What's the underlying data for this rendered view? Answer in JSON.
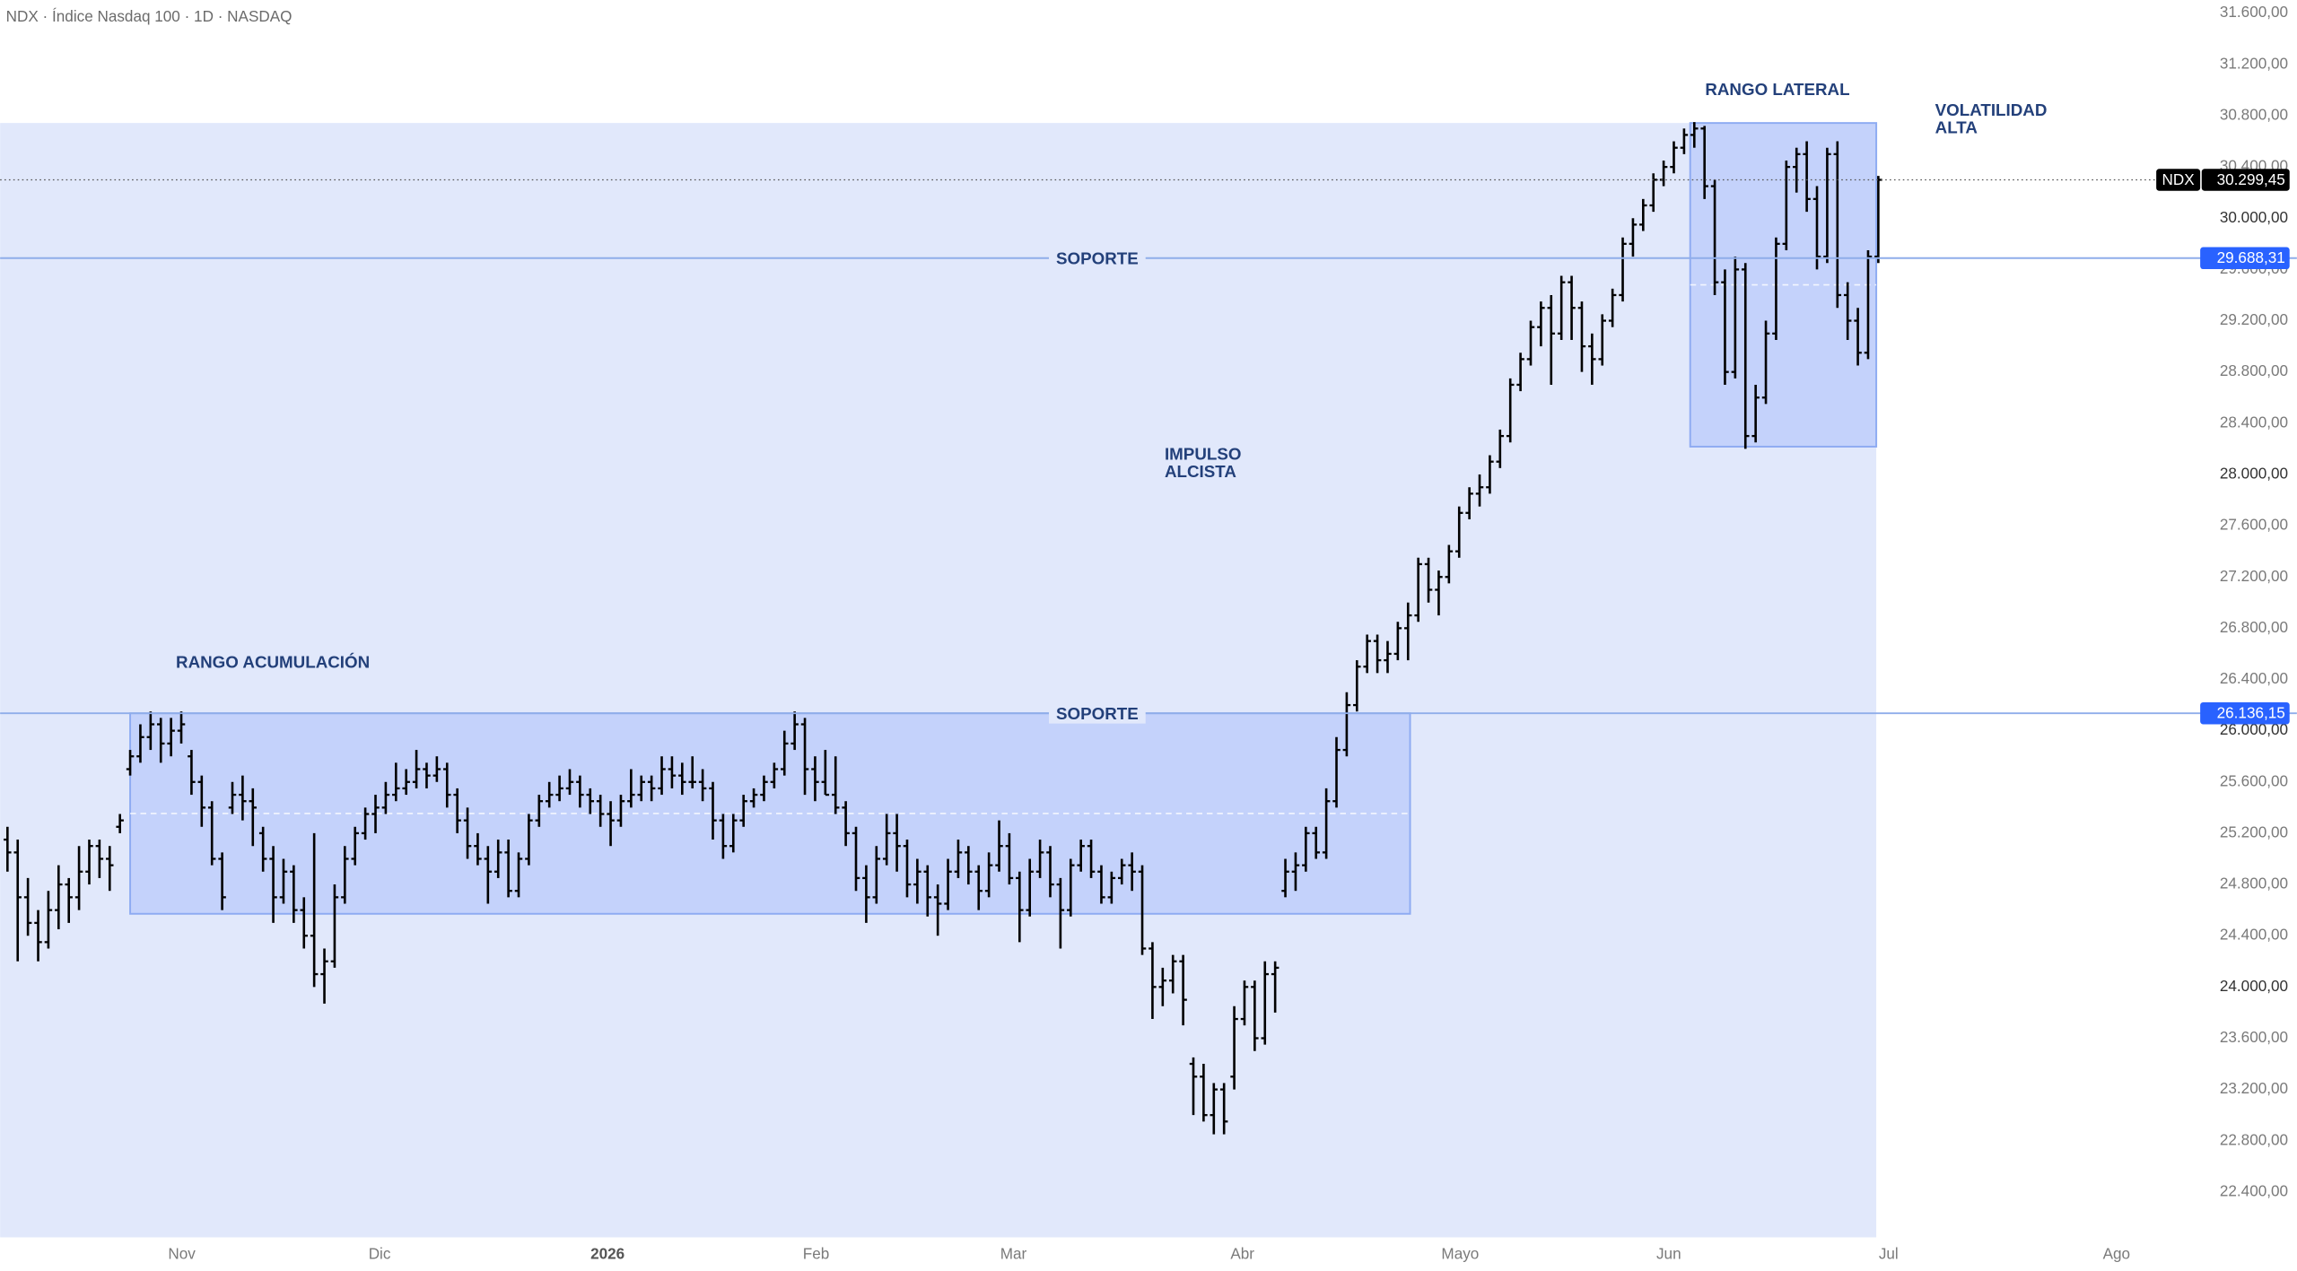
{
  "chart_data": {
    "type": "ohlc",
    "title": "NDX · Índice Nasdaq 100 · 1D · NASDAQ",
    "symbol": "NDX",
    "color": "#000000",
    "last_label": "30.299,45",
    "xlim": [
      -0.72,
      214.2
    ],
    "ylim": [
      22046,
      31703
    ],
    "xticks": [
      {
        "value": 17.05,
        "label": "Nov"
      },
      {
        "value": 36.4,
        "label": "Dic"
      },
      {
        "value": 58.7,
        "label": "2026"
      },
      {
        "value": 79.1,
        "label": "Feb"
      },
      {
        "value": 98.4,
        "label": "Mar"
      },
      {
        "value": 120.8,
        "label": "Abr"
      },
      {
        "value": 142.1,
        "label": "Mayo"
      },
      {
        "value": 162.5,
        "label": "Jun"
      },
      {
        "value": 184.0,
        "label": "Jul"
      },
      {
        "value": 206.3,
        "label": "Ago"
      }
    ],
    "yticks": [
      {
        "value": 31600,
        "label": "31.600,00"
      },
      {
        "value": 31200,
        "label": "31.200,00"
      },
      {
        "value": 30800,
        "label": "30.800,00"
      },
      {
        "value": 30400,
        "label": "30.400,00"
      },
      {
        "value": 30000,
        "label": "30.000,00"
      },
      {
        "value": 29600,
        "label": "29.600,00"
      },
      {
        "value": 29200,
        "label": "29.200,00"
      },
      {
        "value": 28800,
        "label": "28.800,00"
      },
      {
        "value": 28400,
        "label": "28.400,00"
      },
      {
        "value": 28000,
        "label": "28.000,00"
      },
      {
        "value": 27600,
        "label": "27.600,00"
      },
      {
        "value": 27200,
        "label": "27.200,00"
      },
      {
        "value": 26800,
        "label": "26.800,00"
      },
      {
        "value": 26400,
        "label": "26.400,00"
      },
      {
        "value": 26000,
        "label": "26.000,00"
      },
      {
        "value": 25600,
        "label": "25.600,00"
      },
      {
        "value": 25200,
        "label": "25.200,00"
      },
      {
        "value": 24800,
        "label": "24.800,00"
      },
      {
        "value": 24400,
        "label": "24.400,00"
      },
      {
        "value": 24000,
        "label": "24.000,00"
      },
      {
        "value": 23600,
        "label": "23.600,00"
      },
      {
        "value": 23200,
        "label": "23.200,00"
      },
      {
        "value": 22800,
        "label": "22.800,00"
      },
      {
        "value": 22400,
        "label": "22.400,00"
      }
    ],
    "levels": [
      {
        "name": "SOPORTE",
        "value": 29688.31,
        "label": "29.688,31"
      },
      {
        "name": "SOPORTE",
        "value": 26136.15,
        "label": "26.136,15"
      }
    ],
    "zones": [
      {
        "x": [
          12.0,
          137.2
        ],
        "y": [
          24571,
          26136.15
        ]
      },
      {
        "x": [
          164.6,
          182.8
        ],
        "y": [
          28217,
          30743
        ]
      }
    ],
    "annotations": [
      {
        "lines": [
          "RANGO ACUMULACIÓN"
        ]
      },
      {
        "lines": [
          "RANGO LATERAL"
        ]
      },
      {
        "lines": [
          "IMPULSO",
          "ALCISTA"
        ]
      },
      {
        "lines": [
          "VOLATILIDAD",
          "ALTA"
        ]
      }
    ],
    "ohlc": [
      [
        25150,
        25250,
        24900,
        25050
      ],
      [
        25050,
        25150,
        24200,
        24700
      ],
      [
        24700,
        24850,
        24400,
        24500
      ],
      [
        24500,
        24600,
        24200,
        24350
      ],
      [
        24350,
        24750,
        24300,
        24600
      ],
      [
        24600,
        24950,
        24450,
        24800
      ],
      [
        24800,
        24850,
        24500,
        24700
      ],
      [
        24700,
        25100,
        24600,
        24900
      ],
      [
        24900,
        25150,
        24800,
        25100
      ],
      [
        25100,
        25150,
        24850,
        25000
      ],
      [
        25000,
        25100,
        24750,
        24950
      ],
      [
        25250,
        25350,
        25200,
        25300
      ],
      [
        25700,
        25850,
        25650,
        25800
      ],
      [
        25800,
        26050,
        25750,
        25950
      ],
      [
        25950,
        26150,
        25850,
        26050
      ],
      [
        26050,
        26100,
        25750,
        25900
      ],
      [
        25900,
        26100,
        25800,
        26000
      ],
      [
        26000,
        26150,
        25900,
        26050
      ],
      [
        25800,
        25850,
        25500,
        25600
      ],
      [
        25600,
        25650,
        25250,
        25400
      ],
      [
        25400,
        25450,
        24950,
        25000
      ],
      [
        25000,
        25050,
        24600,
        24700
      ],
      [
        25400,
        25600,
        25350,
        25500
      ],
      [
        25500,
        25650,
        25300,
        25450
      ],
      [
        25450,
        25550,
        25100,
        25400
      ],
      [
        25200,
        25250,
        24900,
        25000
      ],
      [
        25000,
        25100,
        24500,
        24700
      ],
      [
        24700,
        25000,
        24650,
        24900
      ],
      [
        24900,
        24950,
        24500,
        24600
      ],
      [
        24600,
        24700,
        24300,
        24400
      ],
      [
        24400,
        25200,
        24000,
        24100
      ],
      [
        24100,
        24300,
        23870,
        24200
      ],
      [
        24200,
        24800,
        24150,
        24700
      ],
      [
        24700,
        25100,
        24650,
        25000
      ],
      [
        25000,
        25250,
        24950,
        25200
      ],
      [
        25200,
        25400,
        25150,
        25350
      ],
      [
        25350,
        25500,
        25200,
        25400
      ],
      [
        25400,
        25600,
        25350,
        25500
      ],
      [
        25500,
        25750,
        25450,
        25550
      ],
      [
        25550,
        25700,
        25500,
        25600
      ],
      [
        25600,
        25850,
        25550,
        25700
      ],
      [
        25700,
        25750,
        25550,
        25650
      ],
      [
        25650,
        25800,
        25600,
        25700
      ],
      [
        25700,
        25750,
        25400,
        25500
      ],
      [
        25500,
        25550,
        25200,
        25300
      ],
      [
        25300,
        25400,
        25000,
        25100
      ],
      [
        25100,
        25200,
        24950,
        25000
      ],
      [
        25000,
        25100,
        24650,
        24900
      ],
      [
        24900,
        25150,
        24850,
        25050
      ],
      [
        25050,
        25150,
        24700,
        24750
      ],
      [
        24750,
        25050,
        24700,
        25000
      ],
      [
        25000,
        25350,
        24950,
        25300
      ],
      [
        25300,
        25500,
        25250,
        25450
      ],
      [
        25450,
        25600,
        25400,
        25500
      ],
      [
        25500,
        25650,
        25450,
        25550
      ],
      [
        25550,
        25700,
        25500,
        25600
      ],
      [
        25600,
        25650,
        25400,
        25500
      ],
      [
        25500,
        25550,
        25350,
        25450
      ],
      [
        25450,
        25500,
        25250,
        25350
      ],
      [
        25350,
        25450,
        25100,
        25300
      ],
      [
        25300,
        25500,
        25250,
        25450
      ],
      [
        25450,
        25700,
        25400,
        25500
      ],
      [
        25500,
        25650,
        25450,
        25600
      ],
      [
        25600,
        25650,
        25450,
        25550
      ],
      [
        25550,
        25800,
        25500,
        25700
      ],
      [
        25700,
        25800,
        25550,
        25650
      ],
      [
        25650,
        25750,
        25500,
        25600
      ],
      [
        25600,
        25800,
        25550,
        25600
      ],
      [
        25600,
        25700,
        25450,
        25550
      ],
      [
        25550,
        25600,
        25150,
        25300
      ],
      [
        25300,
        25350,
        25000,
        25100
      ],
      [
        25100,
        25350,
        25050,
        25300
      ],
      [
        25300,
        25500,
        25250,
        25450
      ],
      [
        25450,
        25550,
        25400,
        25500
      ],
      [
        25500,
        25650,
        25450,
        25600
      ],
      [
        25600,
        25750,
        25550,
        25700
      ],
      [
        25700,
        26000,
        25650,
        25900
      ],
      [
        25900,
        26150,
        25850,
        26050
      ],
      [
        26050,
        26100,
        25500,
        25700
      ],
      [
        25700,
        25800,
        25450,
        25600
      ],
      [
        25600,
        25850,
        25500,
        25500
      ],
      [
        25500,
        25800,
        25350,
        25400
      ],
      [
        25400,
        25450,
        25100,
        25200
      ],
      [
        25200,
        25250,
        24750,
        24850
      ],
      [
        24850,
        24950,
        24500,
        24700
      ],
      [
        24700,
        25100,
        24650,
        25000
      ],
      [
        25000,
        25350,
        24950,
        25200
      ],
      [
        25200,
        25350,
        24900,
        25100
      ],
      [
        25100,
        25150,
        24700,
        24800
      ],
      [
        24800,
        25000,
        24650,
        24900
      ],
      [
        24900,
        24950,
        24550,
        24700
      ],
      [
        24700,
        24800,
        24400,
        24650
      ],
      [
        24650,
        25000,
        24600,
        24900
      ],
      [
        24900,
        25150,
        24850,
        25050
      ],
      [
        25050,
        25100,
        24800,
        24900
      ],
      [
        24900,
        24950,
        24600,
        24750
      ],
      [
        24750,
        25050,
        24700,
        24950
      ],
      [
        24950,
        25300,
        24900,
        25100
      ],
      [
        25100,
        25200,
        24800,
        24850
      ],
      [
        24850,
        24900,
        24350,
        24600
      ],
      [
        24600,
        25000,
        24550,
        24900
      ],
      [
        24900,
        25150,
        24850,
        25050
      ],
      [
        25050,
        25100,
        24700,
        24800
      ],
      [
        24800,
        24850,
        24300,
        24600
      ],
      [
        24600,
        25000,
        24550,
        24950
      ],
      [
        24950,
        25150,
        24900,
        25100
      ],
      [
        25100,
        25150,
        24850,
        24900
      ],
      [
        24900,
        24950,
        24650,
        24700
      ],
      [
        24700,
        24900,
        24650,
        24850
      ],
      [
        24850,
        25000,
        24800,
        24950
      ],
      [
        24950,
        25050,
        24750,
        24900
      ],
      [
        24900,
        24950,
        24250,
        24300
      ],
      [
        24300,
        24350,
        23750,
        24000
      ],
      [
        24000,
        24150,
        23850,
        24050
      ],
      [
        24050,
        24250,
        23950,
        24200
      ],
      [
        24200,
        24250,
        23700,
        23900
      ],
      [
        23400,
        23450,
        23000,
        23300
      ],
      [
        23300,
        23400,
        22950,
        23000
      ],
      [
        23000,
        23250,
        22850,
        23200
      ],
      [
        23200,
        23250,
        22850,
        22950
      ],
      [
        23300,
        23850,
        23200,
        23750
      ],
      [
        23750,
        24050,
        23700,
        24000
      ],
      [
        24000,
        24050,
        23500,
        23600
      ],
      [
        23600,
        24200,
        23550,
        24100
      ],
      [
        24100,
        24200,
        23800,
        24150
      ],
      [
        24750,
        25000,
        24700,
        24900
      ],
      [
        24900,
        25050,
        24750,
        24950
      ],
      [
        24950,
        25250,
        24900,
        25200
      ],
      [
        25200,
        25250,
        25000,
        25050
      ],
      [
        25050,
        25550,
        25000,
        25450
      ],
      [
        25450,
        25950,
        25400,
        25850
      ],
      [
        25850,
        26300,
        25800,
        26200
      ],
      [
        26200,
        26550,
        26150,
        26500
      ],
      [
        26500,
        26750,
        26450,
        26700
      ],
      [
        26700,
        26750,
        26450,
        26550
      ],
      [
        26550,
        26700,
        26450,
        26600
      ],
      [
        26600,
        26850,
        26550,
        26800
      ],
      [
        26800,
        27000,
        26550,
        26900
      ],
      [
        26900,
        27350,
        26850,
        27300
      ],
      [
        27300,
        27350,
        27000,
        27100
      ],
      [
        27100,
        27250,
        26900,
        27200
      ],
      [
        27200,
        27450,
        27150,
        27400
      ],
      [
        27400,
        27750,
        27350,
        27700
      ],
      [
        27700,
        27900,
        27650,
        27850
      ],
      [
        27850,
        28000,
        27750,
        27900
      ],
      [
        27900,
        28150,
        27850,
        28100
      ],
      [
        28100,
        28350,
        28050,
        28300
      ],
      [
        28300,
        28750,
        28250,
        28700
      ],
      [
        28700,
        28950,
        28650,
        28900
      ],
      [
        28900,
        29200,
        28850,
        29150
      ],
      [
        29150,
        29350,
        29000,
        29300
      ],
      [
        29300,
        29400,
        28700,
        29100
      ],
      [
        29100,
        29550,
        29050,
        29500
      ],
      [
        29500,
        29550,
        29050,
        29300
      ],
      [
        29300,
        29350,
        28800,
        29000
      ],
      [
        29000,
        29100,
        28700,
        28900
      ],
      [
        28900,
        29250,
        28850,
        29200
      ],
      [
        29200,
        29450,
        29150,
        29400
      ],
      [
        29400,
        29850,
        29350,
        29800
      ],
      [
        29800,
        30000,
        29700,
        29950
      ],
      [
        29950,
        30150,
        29900,
        30100
      ],
      [
        30100,
        30350,
        30050,
        30300
      ],
      [
        30300,
        30450,
        30250,
        30400
      ],
      [
        30400,
        30600,
        30350,
        30550
      ],
      [
        30550,
        30700,
        30500,
        30650
      ],
      [
        30650,
        30750,
        30550,
        30700
      ],
      [
        30700,
        30720,
        30150,
        30250
      ],
      [
        30250,
        30300,
        29400,
        29500
      ],
      [
        29500,
        29600,
        28700,
        28800
      ],
      [
        28800,
        29700,
        28750,
        29600
      ],
      [
        29600,
        29650,
        28200,
        28300
      ],
      [
        28300,
        28700,
        28250,
        28600
      ],
      [
        28600,
        29200,
        28550,
        29100
      ],
      [
        29100,
        29850,
        29050,
        29800
      ],
      [
        29800,
        30450,
        29750,
        30400
      ],
      [
        30400,
        30550,
        30200,
        30500
      ],
      [
        30500,
        30600,
        30050,
        30150
      ],
      [
        30150,
        30250,
        29600,
        29700
      ],
      [
        29700,
        30550,
        29650,
        30500
      ],
      [
        30500,
        30600,
        29300,
        29400
      ],
      [
        29400,
        29500,
        29050,
        29200
      ],
      [
        29200,
        29300,
        28850,
        28950
      ],
      [
        28950,
        29750,
        28900,
        29700
      ],
      [
        29700,
        30330,
        29650,
        30299.45
      ]
    ]
  }
}
